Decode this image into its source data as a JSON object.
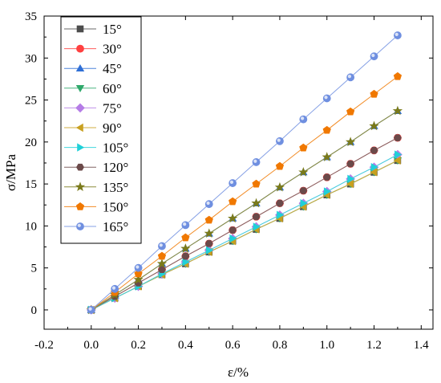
{
  "chart_data": {
    "type": "line",
    "title": "",
    "xlabel": "ε/%",
    "ylabel": "σ/MPa",
    "xlim": [
      -0.2,
      1.45
    ],
    "ylim": [
      -2.3,
      35
    ],
    "xticks": [
      -0.2,
      0.0,
      0.2,
      0.4,
      0.6,
      0.8,
      1.0,
      1.2,
      1.4
    ],
    "xtick_labels": [
      "-0.2",
      "0.0",
      "0.2",
      "0.4",
      "0.6",
      "0.8",
      "1.0",
      "1.2",
      "1.4"
    ],
    "yticks": [
      0,
      5,
      10,
      15,
      20,
      25,
      30,
      35
    ],
    "ytick_labels": [
      "0",
      "5",
      "10",
      "15",
      "20",
      "25",
      "30",
      "35"
    ],
    "grid": false,
    "legend_position": "top-left",
    "x": [
      0,
      0.1,
      0.2,
      0.3,
      0.4,
      0.5,
      0.6,
      0.7,
      0.8,
      0.9,
      1.0,
      1.1,
      1.2,
      1.3
    ],
    "series": [
      {
        "name": "15°",
        "color": "#4d4d4d",
        "marker": "square",
        "values": [
          0,
          1.4,
          2.8,
          4.2,
          5.5,
          6.9,
          8.2,
          9.6,
          10.9,
          12.3,
          13.7,
          15.0,
          16.4,
          17.8
        ]
      },
      {
        "name": "30°",
        "color": "#ff4040",
        "marker": "circle",
        "values": [
          0,
          1.6,
          3.2,
          4.8,
          6.4,
          7.9,
          9.5,
          11.1,
          12.7,
          14.2,
          15.8,
          17.4,
          19.0,
          20.5
        ]
      },
      {
        "name": "45°",
        "color": "#2f6fd6",
        "marker": "triangle-up",
        "values": [
          0,
          1.8,
          3.6,
          5.5,
          7.3,
          9.1,
          10.9,
          12.7,
          14.6,
          16.4,
          18.2,
          20.0,
          21.9,
          23.7
        ]
      },
      {
        "name": "60°",
        "color": "#2ea86a",
        "marker": "triangle-down",
        "values": [
          0,
          1.4,
          2.8,
          4.2,
          5.5,
          6.9,
          8.2,
          9.6,
          10.9,
          12.3,
          13.7,
          15.0,
          16.4,
          17.8
        ]
      },
      {
        "name": "75°",
        "color": "#b57ce6",
        "marker": "diamond",
        "values": [
          0,
          1.4,
          2.8,
          4.3,
          5.7,
          7.1,
          8.5,
          9.9,
          11.3,
          12.7,
          14.1,
          15.6,
          17.0,
          18.5
        ]
      },
      {
        "name": "90°",
        "color": "#c8a020",
        "marker": "triangle-left",
        "values": [
          0,
          1.4,
          2.8,
          4.2,
          5.5,
          6.9,
          8.2,
          9.6,
          10.9,
          12.3,
          13.7,
          15.0,
          16.4,
          17.8
        ]
      },
      {
        "name": "105°",
        "color": "#20d0d8",
        "marker": "triangle-right",
        "values": [
          0,
          1.4,
          2.8,
          4.3,
          5.7,
          7.1,
          8.5,
          9.9,
          11.3,
          12.7,
          14.1,
          15.6,
          17.0,
          18.5
        ]
      },
      {
        "name": "120°",
        "color": "#6b4a4a",
        "marker": "hexagon",
        "values": [
          0,
          1.6,
          3.2,
          4.8,
          6.4,
          7.9,
          9.5,
          11.1,
          12.7,
          14.2,
          15.8,
          17.4,
          19.0,
          20.5
        ]
      },
      {
        "name": "135°",
        "color": "#7a7a1a",
        "marker": "star",
        "values": [
          0,
          1.8,
          3.6,
          5.5,
          7.3,
          9.1,
          10.9,
          12.7,
          14.6,
          16.4,
          18.2,
          20.0,
          21.9,
          23.7
        ]
      },
      {
        "name": "150°",
        "color": "#f07800",
        "marker": "pentagon",
        "values": [
          0,
          2.1,
          4.3,
          6.4,
          8.6,
          10.7,
          12.9,
          15.0,
          17.1,
          19.3,
          21.4,
          23.6,
          25.7,
          27.8
        ]
      },
      {
        "name": "165°",
        "color": "#6f8fe0",
        "marker": "sphere",
        "values": [
          0,
          2.5,
          5.0,
          7.6,
          10.1,
          12.6,
          15.1,
          17.6,
          20.1,
          22.7,
          25.2,
          27.7,
          30.2,
          32.7
        ]
      }
    ]
  }
}
